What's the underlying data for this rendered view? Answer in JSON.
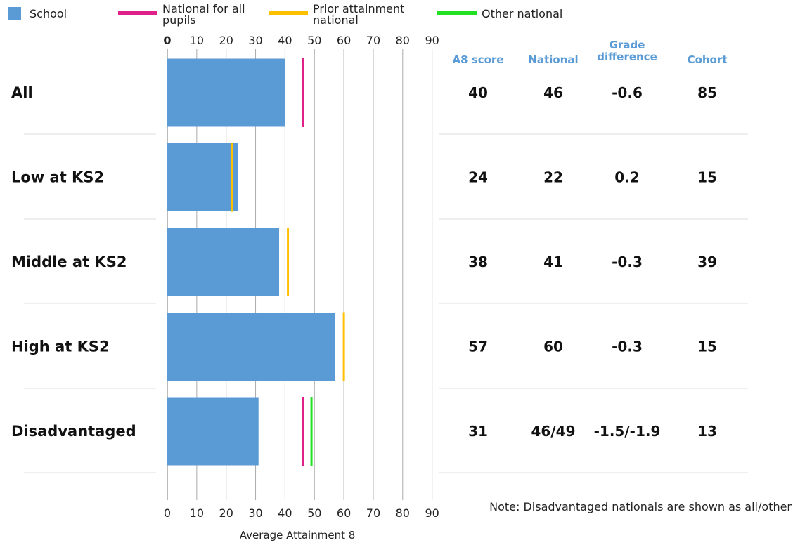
{
  "legend": [
    {
      "label_lines": [
        "School"
      ],
      "color": "#5b9bd5",
      "shape": "square"
    },
    {
      "label_lines": [
        "National for all",
        "pupils"
      ],
      "color": "#e0218a",
      "shape": "line"
    },
    {
      "label_lines": [
        "Prior attainment",
        "national"
      ],
      "color": "#ffc000",
      "shape": "line"
    },
    {
      "label_lines": [
        "Other national"
      ],
      "color": "#22e022",
      "shape": "line"
    }
  ],
  "table": {
    "headers": [
      {
        "lines": [
          "A8 score"
        ]
      },
      {
        "lines": [
          "National"
        ]
      },
      {
        "lines": [
          "Grade",
          "difference"
        ]
      },
      {
        "lines": [
          "Cohort"
        ]
      }
    ],
    "rows": [
      [
        "40",
        "46",
        "-0.6",
        "85"
      ],
      [
        "24",
        "22",
        "0.2",
        "15"
      ],
      [
        "38",
        "41",
        "-0.3",
        "39"
      ],
      [
        "57",
        "60",
        "-0.3",
        "15"
      ],
      [
        "31",
        "46/49",
        "-1.5/-1.9",
        "13"
      ]
    ]
  },
  "note": "Note: Disadvantaged nationals are shown as all/other",
  "chart_data": {
    "type": "bar",
    "orientation": "horizontal",
    "categories": [
      "All",
      "Low at KS2",
      "Middle at KS2",
      "High at KS2",
      "Disadvantaged"
    ],
    "series": [
      {
        "name": "School",
        "values": [
          40,
          24,
          38,
          57,
          31
        ],
        "color": "#5b9bd5"
      }
    ],
    "markers": [
      {
        "name": "National for all pupils",
        "color": "#e0218a",
        "values": [
          46,
          null,
          null,
          null,
          46
        ]
      },
      {
        "name": "Prior attainment national",
        "color": "#ffc000",
        "values": [
          null,
          22,
          41,
          60,
          null
        ]
      },
      {
        "name": "Other national",
        "color": "#22e022",
        "values": [
          null,
          null,
          null,
          null,
          49
        ]
      }
    ],
    "xlabel": "Average Attainment 8",
    "xlim": [
      0,
      90
    ],
    "xticks": [
      0,
      10,
      20,
      30,
      40,
      50,
      60,
      70,
      80,
      90
    ],
    "grid": true,
    "legend_position": "top"
  }
}
